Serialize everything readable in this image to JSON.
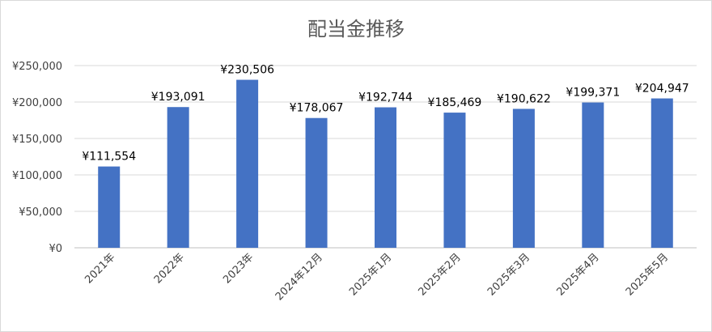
{
  "chart_data": {
    "type": "bar",
    "title": "配当金推移",
    "xlabel": "",
    "ylabel": "",
    "categories": [
      "2021年",
      "2022年",
      "2023年",
      "2024年12月",
      "2025年1月",
      "2025年2月",
      "2025年3月",
      "2025年4月",
      "2025年5月"
    ],
    "values": [
      111554,
      193091,
      230506,
      178067,
      192744,
      185469,
      190622,
      199371,
      204947
    ],
    "data_labels": [
      "¥111,554",
      "¥193,091",
      "¥230,506",
      "¥178,067",
      "¥192,744",
      "¥185,469",
      "¥190,622",
      "¥199,371",
      "¥204,947"
    ],
    "ylim": [
      0,
      250000
    ],
    "yticks": [
      0,
      50000,
      100000,
      150000,
      200000,
      250000
    ],
    "ytick_labels": [
      "¥0",
      "¥50,000",
      "¥100,000",
      "¥150,000",
      "¥200,000",
      "¥250,000"
    ],
    "grid": true,
    "legend": "none",
    "bar_color": "#4472C4"
  }
}
